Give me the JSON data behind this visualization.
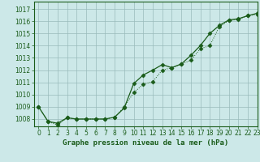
{
  "title": "Graphe pression niveau de la mer (hPa)",
  "background_color": "#cce8e8",
  "plot_bg_color": "#cce8e8",
  "grid_color": "#99bbbb",
  "line_color_solid": "#1a5c1a",
  "line_color_dotted": "#1a5c1a",
  "xlim": [
    -0.5,
    23
  ],
  "ylim": [
    1007.4,
    1017.6
  ],
  "yticks": [
    1008,
    1009,
    1010,
    1011,
    1012,
    1013,
    1014,
    1015,
    1016,
    1017
  ],
  "xticks": [
    0,
    1,
    2,
    3,
    4,
    5,
    6,
    7,
    8,
    9,
    10,
    11,
    12,
    13,
    14,
    15,
    16,
    17,
    18,
    19,
    20,
    21,
    22,
    23
  ],
  "series_solid": [
    1009.0,
    1007.8,
    1007.65,
    1008.1,
    1008.0,
    1008.0,
    1008.0,
    1008.0,
    1008.15,
    1008.9,
    1010.9,
    1011.6,
    1012.0,
    1012.45,
    1012.2,
    1012.5,
    1013.2,
    1014.0,
    1015.0,
    1015.65,
    1016.1,
    1016.2,
    1016.45,
    1016.65
  ],
  "series_dotted": [
    1009.0,
    1007.8,
    1007.5,
    1008.1,
    1008.0,
    1008.0,
    1008.0,
    1008.0,
    1008.15,
    1009.0,
    1010.15,
    1010.85,
    1011.05,
    1012.0,
    1012.2,
    1012.5,
    1012.8,
    1013.75,
    1014.0,
    1015.55,
    1016.05,
    1016.15,
    1016.45,
    1016.55
  ],
  "title_fontsize": 6.5,
  "tick_fontsize": 5.5,
  "tick_color": "#1a5c1a",
  "spine_color": "#1a5c1a"
}
